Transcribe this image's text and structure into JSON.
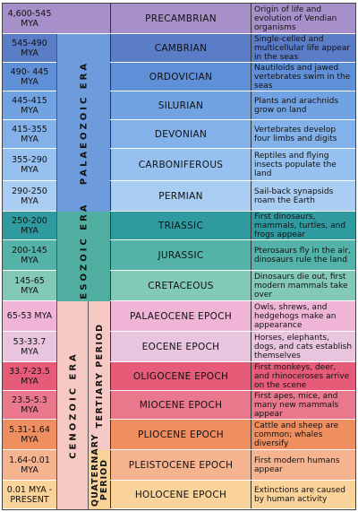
{
  "eons": [
    {
      "mya": "4,600-545 MYA",
      "name": "PRECAMBRIAN",
      "desc": "Origin of life and evolution of Vendian organisms",
      "color": "#a78fc9"
    },
    {
      "mya": "545-490 MYA",
      "name": "CAMBRIAN",
      "desc": "Single-celled and multicellular life appear in the seas",
      "color": "#5b7cc7"
    },
    {
      "mya": "490- 445 MYA",
      "name": "ORDOVICIAN",
      "desc": "Nautiloids and jawed vertebrates swim in the seas",
      "color": "#5f8fd7"
    },
    {
      "mya": "445-415 MYA",
      "name": "SILURIAN",
      "desc": "Plants and arachnids grow on land",
      "color": "#71a3e3"
    },
    {
      "mya": "415-355 MYA",
      "name": "DEVONIAN",
      "desc": "Vertebrates develop four limbs and digits",
      "color": "#83b2ea"
    },
    {
      "mya": "355-290 MYA",
      "name": "CARBONIFEROUS",
      "desc": "Reptiles and flying insects populate the land",
      "color": "#95c0ef"
    },
    {
      "mya": "290-250 MYA",
      "name": "PERMIAN",
      "desc": "Sail-back synapsids roam the Earth",
      "color": "#a8ccf2"
    },
    {
      "mya": "250-200 MYA",
      "name": "TRIASSIC",
      "desc": "First dinosaurs, mammals, turtles, and frogs appear",
      "color": "#2f9ba0"
    },
    {
      "mya": "200-145 MYA",
      "name": "JURASSIC",
      "desc": "Pterosaurs fly in the air, dinosaurs rule the land",
      "color": "#53b3a8"
    },
    {
      "mya": "145-65 MYA",
      "name": "CRETACEOUS",
      "desc": "Dinosaurs die out, first modern mammals take over",
      "color": "#82c9b6"
    },
    {
      "mya": "65-53 MYA",
      "name": "PALAEOCENE EPOCH",
      "desc": "Owls, shrews, and hedgehogs make an appearance",
      "color": "#efb4d6"
    },
    {
      "mya": "53-33.7 MYA",
      "name": "EOCENE EPOCH",
      "desc": "Horses, elephants, dogs, and cats establish themselves",
      "color": "#e8c4df"
    },
    {
      "mya": "33.7-23.5 MYA",
      "name": "OLIGOCENE EPOCH",
      "desc": "First monkeys, deer, and rhinoceroses arrive on the scene",
      "color": "#e55b78"
    },
    {
      "mya": "23.5-5.3 MYA",
      "name": "MIOCENE EPOCH",
      "desc": "First apes, mice, and many new mammals appear",
      "color": "#e9788c"
    },
    {
      "mya": "5.31-1.64 MYA",
      "name": "PLIOCENE EPOCH",
      "desc": "Cattle and sheep are common; whales diversify",
      "color": "#ef8e5f"
    },
    {
      "mya": "1.64-0.01 MYA",
      "name": "PLEISTOCENE EPOCH",
      "desc": "First modern humans appear",
      "color": "#f6b38f"
    },
    {
      "mya": "0.01 MYA -PRESENT",
      "name": "HOLOCENE EPOCH",
      "desc": "Extinctions are caused by human activity",
      "color": "#f9d39a"
    }
  ],
  "eras": [
    {
      "label": "PALAEOZOIC ERA",
      "color": "#6e9bdc"
    },
    {
      "label": "MESOZOIC ERA",
      "color": "#4fae9f"
    },
    {
      "label": "CENOZOIC ERA",
      "color": "#f7c9c5"
    }
  ],
  "periods": [
    {
      "label": "TERTIARY PERIOD",
      "color": "#f7c9c5"
    },
    {
      "label": "QUATERNARY PERIOD",
      "color": "#f9d39a"
    }
  ]
}
